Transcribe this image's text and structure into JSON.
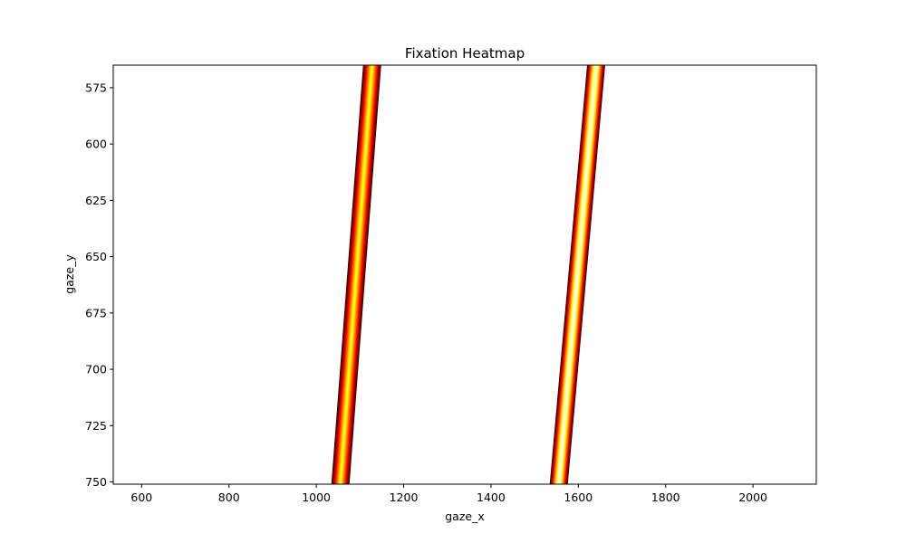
{
  "chart_data": {
    "type": "heatmap",
    "title": "Fixation Heatmap",
    "xlabel": "gaze_x",
    "ylabel": "gaze_y",
    "xlim": [
      535,
      2145
    ],
    "ylim": [
      751,
      565
    ],
    "y_inverted": true,
    "x_ticks": [
      600,
      800,
      1000,
      1200,
      1400,
      1600,
      1800,
      2000
    ],
    "y_ticks": [
      575,
      600,
      625,
      650,
      675,
      700,
      725,
      750
    ],
    "colormap": "hot",
    "background_color": "#ffffff",
    "grid": false,
    "legend": "none",
    "series": [
      {
        "path": [
          [
            1055,
            751
          ],
          [
            1128,
            565
          ]
        ],
        "peak_intensity": 0.75
      },
      {
        "path": [
          [
            1555,
            751
          ],
          [
            1641,
            565
          ]
        ],
        "peak_intensity": 1.0
      }
    ]
  }
}
